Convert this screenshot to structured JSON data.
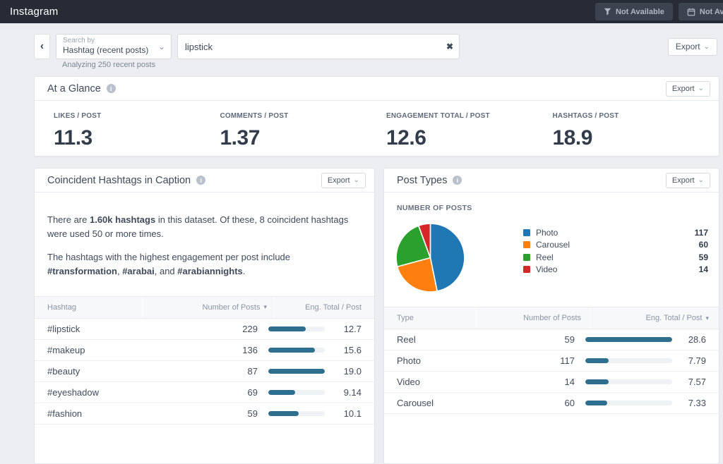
{
  "topbar": {
    "title": "Instagram",
    "filter_button": "Not Available",
    "date_button": "Not Available"
  },
  "search": {
    "dropdown_label": "Search by",
    "dropdown_value": "Hashtag (recent posts)",
    "query": "lipstick",
    "analyzing_note": "Analyzing 250 recent posts",
    "export_label": "Export"
  },
  "icons": {
    "back": "‹",
    "dropdown_chevron": "⌄",
    "export_chevron": "⌄",
    "clear": "✖",
    "info": "i",
    "sort_desc": "▾"
  },
  "glance": {
    "title": "At a Glance",
    "export_label": "Export",
    "metrics": [
      {
        "label": "LIKES / POST",
        "value": "11.3"
      },
      {
        "label": "COMMENTS / POST",
        "value": "1.37"
      },
      {
        "label": "ENGAGEMENT TOTAL / POST",
        "value": "12.6"
      },
      {
        "label": "HASHTAGS / POST",
        "value": "18.9"
      }
    ]
  },
  "hashtags_panel": {
    "title": "Coincident Hashtags in Caption",
    "export_label": "Export",
    "paragraphs": [
      [
        {
          "t": "There are "
        },
        {
          "t": "1.60k hashtags",
          "b": true
        },
        {
          "t": " in this dataset. Of these, 8 coincident hashtags were used 50 or more times."
        }
      ],
      [
        {
          "t": "The hashtags with the highest engagement per post include "
        },
        {
          "t": "#transformation",
          "b": true
        },
        {
          "t": ", "
        },
        {
          "t": "#arabai",
          "b": true
        },
        {
          "t": ", and "
        },
        {
          "t": "#arabiannights",
          "b": true
        },
        {
          "t": "."
        }
      ]
    ],
    "table": {
      "columns": [
        "Hashtag",
        "Number of Posts",
        "Eng. Total / Post"
      ],
      "sort_column": 1,
      "rows": [
        {
          "label": "#lipstick",
          "posts": "229",
          "eng": 12.7,
          "eng_text": "12.7"
        },
        {
          "label": "#makeup",
          "posts": "136",
          "eng": 15.6,
          "eng_text": "15.6"
        },
        {
          "label": "#beauty",
          "posts": "87",
          "eng": 19.0,
          "eng_text": "19.0"
        },
        {
          "label": "#eyeshadow",
          "posts": "69",
          "eng": 9.14,
          "eng_text": "9.14"
        },
        {
          "label": "#fashion",
          "posts": "59",
          "eng": 10.1,
          "eng_text": "10.1"
        }
      ]
    }
  },
  "types_panel": {
    "title": "Post Types",
    "export_label": "Export",
    "chart_label": "NUMBER OF POSTS",
    "table": {
      "columns": [
        "Type",
        "Number of Posts",
        "Eng. Total / Post"
      ],
      "sort_column": 2,
      "rows": [
        {
          "label": "Reel",
          "posts": "59",
          "eng": 28.6,
          "eng_text": "28.6"
        },
        {
          "label": "Photo",
          "posts": "117",
          "eng": 7.79,
          "eng_text": "7.79"
        },
        {
          "label": "Video",
          "posts": "14",
          "eng": 7.57,
          "eng_text": "7.57"
        },
        {
          "label": "Carousel",
          "posts": "60",
          "eng": 7.33,
          "eng_text": "7.33"
        }
      ]
    }
  },
  "chart_data": {
    "type": "pie",
    "title": "NUMBER OF POSTS",
    "categories": [
      "Photo",
      "Carousel",
      "Reel",
      "Video"
    ],
    "values": [
      117,
      60,
      59,
      14
    ],
    "colors": [
      "#1f77b4",
      "#ff7f0e",
      "#2ca02c",
      "#d62728"
    ],
    "legend_position": "right",
    "start_angle_deg": -90,
    "direction": "clockwise"
  },
  "style_colors": {
    "bar_fill": "#2e6f90",
    "bar_track": "#eef2f5",
    "topbar_bg": "#262b35",
    "page_bg": "#eceef1"
  }
}
